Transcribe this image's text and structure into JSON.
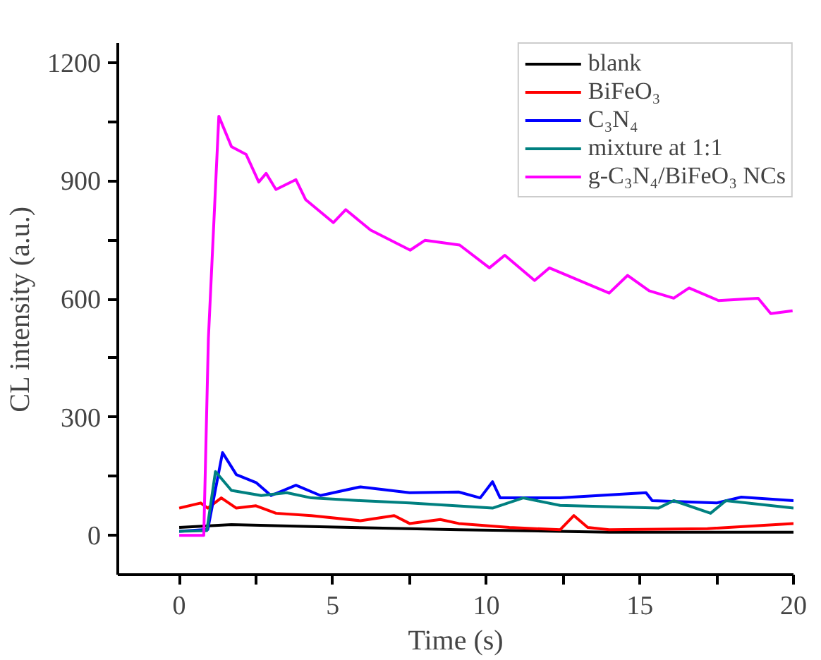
{
  "chart_data": {
    "type": "line",
    "xlabel": "Time (s)",
    "ylabel": "CL intensity (a.u.)",
    "xlim": [
      -2,
      20
    ],
    "ylim": [
      -100,
      1250
    ],
    "xticks": [
      0,
      {
        "value": 2.5,
        "label": null
      },
      5,
      {
        "value": 7.5,
        "label": null
      },
      10,
      {
        "value": 12.5,
        "label": null
      },
      15,
      {
        "value": 17.5,
        "label": null
      },
      20
    ],
    "yticks": [
      0,
      {
        "value": 150,
        "label": null
      },
      300,
      {
        "value": 450,
        "label": null
      },
      600,
      {
        "value": 750,
        "label": null
      },
      900,
      {
        "value": 1050,
        "label": null
      },
      1200
    ],
    "grid": false,
    "legend": "top right",
    "line_style": "solid",
    "marker": "none",
    "series": [
      {
        "name": "blank",
        "color": "#000000",
        "x": [
          0,
          1.7,
          4.3,
          9.1,
          14,
          20
        ],
        "values": [
          20,
          27,
          22,
          14,
          8,
          8
        ]
      },
      {
        "name": "BiFeO₃",
        "color": "#ff0000",
        "x": [
          0,
          0.7,
          0.93,
          1.37,
          1.86,
          2.5,
          3.15,
          4.3,
          5.9,
          7.0,
          7.5,
          8.5,
          9.1,
          10.75,
          12.4,
          12.85,
          13.3,
          14,
          17.2,
          20
        ],
        "values": [
          69,
          82,
          69,
          95,
          69,
          75,
          56,
          50,
          37,
          50,
          30,
          40,
          30,
          20,
          14,
          50,
          20,
          14,
          17,
          30
        ]
      },
      {
        "name": "C₃N₄",
        "color": "#0000ff",
        "x": [
          0,
          0.93,
          1.41,
          1.86,
          2.5,
          2.99,
          3.8,
          4.6,
          5.9,
          7.5,
          9.1,
          9.8,
          10.2,
          10.45,
          12.4,
          15.2,
          15.4,
          17.5,
          18.3,
          20
        ],
        "values": [
          10,
          15,
          210,
          154,
          134,
          101,
          127,
          101,
          123,
          108,
          110,
          95,
          136,
          95,
          95,
          108,
          88,
          82,
          97,
          88
        ]
      },
      {
        "name": "mixture at 1:1",
        "color": "#008080",
        "x": [
          0,
          0.9,
          1.18,
          1.7,
          2.67,
          3.5,
          4.3,
          5.9,
          7.5,
          10.2,
          11.2,
          12.4,
          15.6,
          16.1,
          17.3,
          17.8,
          20
        ],
        "values": [
          10,
          12,
          162,
          114,
          101,
          108,
          95,
          88,
          82,
          69,
          95,
          76,
          69,
          88,
          56,
          88,
          69
        ]
      },
      {
        "name": "g-C₃N₄/BiFeO₃ NCs",
        "color": "#ff00ff",
        "x": [
          0,
          0.8,
          0.95,
          1.29,
          1.7,
          2.18,
          2.59,
          2.83,
          3.15,
          3.8,
          4.12,
          5.02,
          5.42,
          6.23,
          7.52,
          8.0,
          9.13,
          10.1,
          10.6,
          11.57,
          12.05,
          14.0,
          14.6,
          15.3,
          16.1,
          16.6,
          17.56,
          18.85,
          19.26,
          19.97
        ],
        "values": [
          0,
          0,
          500,
          1064,
          987,
          967,
          897,
          919,
          878,
          903,
          852,
          794,
          827,
          775,
          724,
          749,
          737,
          679,
          711,
          647,
          679,
          615,
          660,
          621,
          602,
          628,
          596,
          602,
          563,
          570
        ]
      }
    ]
  }
}
